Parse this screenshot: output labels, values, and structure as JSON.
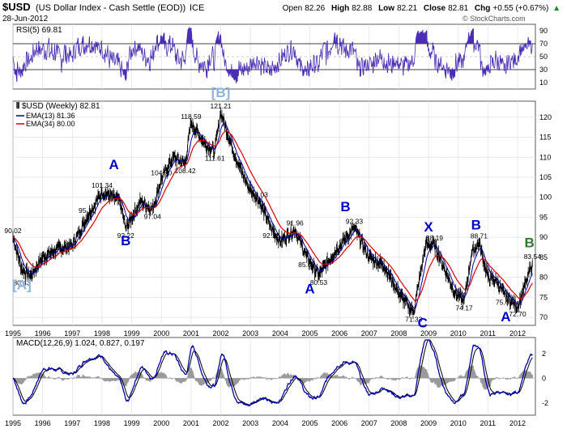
{
  "header": {
    "symbol": "$USD",
    "name": "(US Dollar Index - Cash Settle (EOD))",
    "exchange": "ICE",
    "date": "28-Jun-2012",
    "open_label": "Open",
    "open": "82.26",
    "high_label": "High",
    "high": "82.88",
    "low_label": "Low",
    "low": "82.21",
    "close_label": "Close",
    "close": "82.81",
    "chg_label": "Chg",
    "chg": "+0.55 (+0.67%)",
    "chg_arrow": "▲",
    "watermark": "© StockCharts.com"
  },
  "colors": {
    "price": "#000000",
    "ema13": "#0000aa",
    "ema34": "#dd0000",
    "rsi": "#4a2cb4",
    "wave_blue": "#0000cc",
    "wave_light": "#8fb3dc",
    "wave_green": "#2d7a2d",
    "grid": "#dde3ea",
    "hist": "#9a9a9a"
  },
  "chart_data": [
    {
      "type": "line",
      "panel": "rsi",
      "title": "RSI(5) 69.81",
      "ylim": [
        0,
        100
      ],
      "ticks": [
        10,
        30,
        50,
        70,
        90
      ],
      "levels": [
        30,
        70
      ],
      "last": 69.81
    },
    {
      "type": "line",
      "panel": "price",
      "title": "$USD (Weekly) 82.81",
      "legend": [
        {
          "name": "EMA(13) 81.36",
          "color": "#0000aa"
        },
        {
          "name": "EMA(34) 80.00",
          "color": "#dd0000"
        }
      ],
      "ylim": [
        68,
        124
      ],
      "yticks": [
        70,
        75,
        80,
        85,
        90,
        95,
        100,
        105,
        110,
        115,
        120
      ],
      "xlim": [
        1995.0,
        2012.6
      ],
      "xticks": [
        "1995",
        "1996",
        "1997",
        "1998",
        "1999",
        "2000",
        "2001",
        "2002",
        "2003",
        "2004",
        "2005",
        "2006",
        "2007",
        "2008",
        "2009",
        "2010",
        "2011",
        "2012"
      ],
      "x": [
        1995.0,
        1995.3,
        1995.6,
        1996.0,
        1996.5,
        1997.0,
        1997.5,
        1998.0,
        1998.6,
        1998.8,
        1999.3,
        1999.7,
        2000.0,
        2000.4,
        2000.8,
        2001.0,
        2001.5,
        2001.8,
        2002.0,
        2002.5,
        2002.9,
        2003.3,
        2003.7,
        2004.0,
        2004.5,
        2004.9,
        2005.3,
        2005.9,
        2006.5,
        2007.0,
        2007.5,
        2008.0,
        2008.3,
        2008.5,
        2008.9,
        2009.2,
        2009.6,
        2009.9,
        2010.2,
        2010.45,
        2010.7,
        2011.0,
        2011.3,
        2011.55,
        2011.8,
        2012.0,
        2012.3,
        2012.5
      ],
      "y": [
        90.02,
        82,
        80.43,
        85,
        87,
        88,
        95.1,
        101.34,
        99,
        92.22,
        99,
        97.04,
        104.5,
        110,
        108.42,
        118.59,
        113,
        111.61,
        121.21,
        110,
        103,
        99.03,
        92.28,
        89,
        91.96,
        85.02,
        80.53,
        87,
        92.33,
        85,
        83,
        76,
        73,
        71.33,
        88,
        88.19,
        81,
        76,
        74.17,
        86,
        88.71,
        80,
        79,
        75.63,
        74,
        72.7,
        79,
        83.54
      ],
      "annotations": [
        {
          "text": "90.02",
          "x": 1995.0,
          "y": 90.02
        },
        {
          "text": "80.43",
          "x": 1995.3,
          "y": 80.43
        },
        {
          "text": "101.34",
          "x": 1998.0,
          "y": 101.34
        },
        {
          "text": "95.10",
          "x": 1997.5,
          "y": 95.1
        },
        {
          "text": "92.22",
          "x": 1998.8,
          "y": 92.22
        },
        {
          "text": "104.50",
          "x": 2000.0,
          "y": 104.5
        },
        {
          "text": "97.04",
          "x": 1999.7,
          "y": 97.04
        },
        {
          "text": "118.59",
          "x": 2001.0,
          "y": 118.59
        },
        {
          "text": "108.42",
          "x": 2000.8,
          "y": 108.42
        },
        {
          "text": "121.21",
          "x": 2002.0,
          "y": 121.21
        },
        {
          "text": "111.61",
          "x": 2001.8,
          "y": 111.61
        },
        {
          "text": "99.03",
          "x": 2003.3,
          "y": 99.03
        },
        {
          "text": "92.28",
          "x": 2003.7,
          "y": 92.28
        },
        {
          "text": "91.96",
          "x": 2004.5,
          "y": 91.96
        },
        {
          "text": "85.02",
          "x": 2004.9,
          "y": 85.02
        },
        {
          "text": "92.33",
          "x": 2006.5,
          "y": 92.33
        },
        {
          "text": "80.53",
          "x": 2005.3,
          "y": 80.53
        },
        {
          "text": "71.33",
          "x": 2008.5,
          "y": 71.33
        },
        {
          "text": "88.19",
          "x": 2009.2,
          "y": 88.19
        },
        {
          "text": "74.17",
          "x": 2010.2,
          "y": 74.17
        },
        {
          "text": "88.71",
          "x": 2010.7,
          "y": 88.71
        },
        {
          "text": "75.63",
          "x": 2011.55,
          "y": 75.63
        },
        {
          "text": "72.70",
          "x": 2012.0,
          "y": 72.7
        },
        {
          "text": "83.54",
          "x": 2012.5,
          "y": 83.54
        }
      ],
      "waves": [
        {
          "text": "[A]",
          "x": 1995.3,
          "y": 77,
          "color": "#8fb3dc"
        },
        {
          "text": "A",
          "x": 1998.4,
          "y": 107,
          "color": "#0000cc"
        },
        {
          "text": "B",
          "x": 1998.8,
          "y": 88,
          "color": "#0000cc"
        },
        {
          "text": "[B]",
          "x": 2002.0,
          "y": 125,
          "color": "#8fb3dc"
        },
        {
          "text": "B",
          "x": 2006.2,
          "y": 96.5,
          "color": "#0000cc"
        },
        {
          "text": "A",
          "x": 2005.0,
          "y": 76,
          "color": "#0000cc"
        },
        {
          "text": "X",
          "x": 2009.0,
          "y": 91.5,
          "color": "#0000cc"
        },
        {
          "text": "C",
          "x": 2008.8,
          "y": 67.5,
          "color": "#0000cc"
        },
        {
          "text": "B",
          "x": 2010.6,
          "y": 92,
          "color": "#0000cc"
        },
        {
          "text": "A",
          "x": 2011.6,
          "y": 69,
          "color": "#0000cc"
        },
        {
          "text": "B",
          "x": 2012.4,
          "y": 87.5,
          "color": "#2d7a2d"
        }
      ]
    },
    {
      "type": "line",
      "panel": "macd",
      "title": "MACD(12,26,9) 1.024, 0.827, 0.197",
      "series": [
        {
          "name": "MACD(12,26,9)",
          "last": 1.024
        },
        {
          "name": "signal",
          "last": 0.827
        },
        {
          "name": "histogram",
          "last": 0.197
        }
      ],
      "ylim": [
        -3,
        3.3
      ],
      "yticks": [
        -2,
        0,
        2
      ],
      "xticks": [
        "1995",
        "1996",
        "1997",
        "1998",
        "1999",
        "2000",
        "2001",
        "2002",
        "2003",
        "2004",
        "2005",
        "2006",
        "2007",
        "2008",
        "2009",
        "2010",
        "2011",
        "2012"
      ]
    }
  ]
}
